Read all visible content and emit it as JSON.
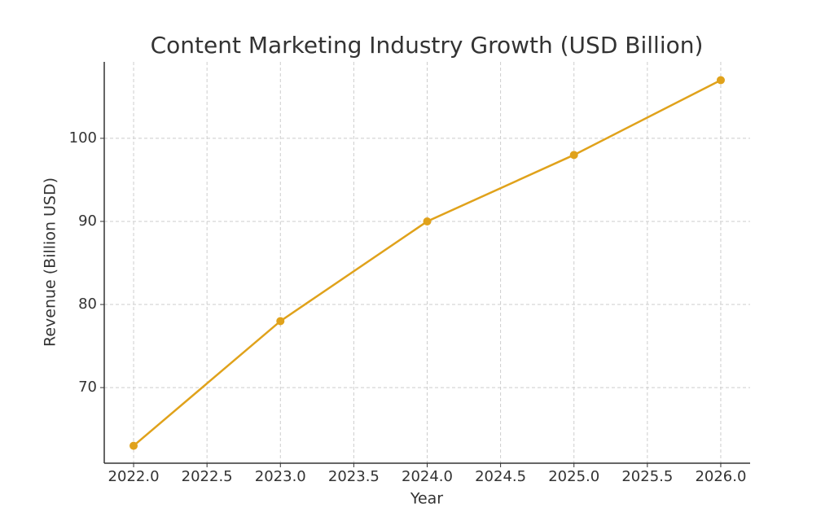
{
  "chart_data": {
    "type": "line",
    "title": "Content Marketing Industry Growth (USD Billion)",
    "x_label": "Year",
    "y_label": "Revenue (Billion USD)",
    "x": [
      2022,
      2023,
      2024,
      2025,
      2026
    ],
    "values": [
      63,
      78,
      90,
      98,
      107
    ],
    "color": "#e0a21b",
    "xlim": [
      2021.8,
      2026.2
    ],
    "ylim": [
      60.9,
      109.2
    ],
    "xticks": [
      {
        "value": 2022,
        "label": "2022.0"
      },
      {
        "value": 2022.5,
        "label": "2022.5"
      },
      {
        "value": 2023,
        "label": "2023.0"
      },
      {
        "value": 2023.5,
        "label": "2023.5"
      },
      {
        "value": 2024,
        "label": "2024.0"
      },
      {
        "value": 2024.5,
        "label": "2024.5"
      },
      {
        "value": 2025,
        "label": "2025.0"
      },
      {
        "value": 2025.5,
        "label": "2025.5"
      },
      {
        "value": 2026,
        "label": "2026.0"
      }
    ],
    "yticks": [
      70,
      80,
      90,
      100
    ],
    "grid": true
  }
}
